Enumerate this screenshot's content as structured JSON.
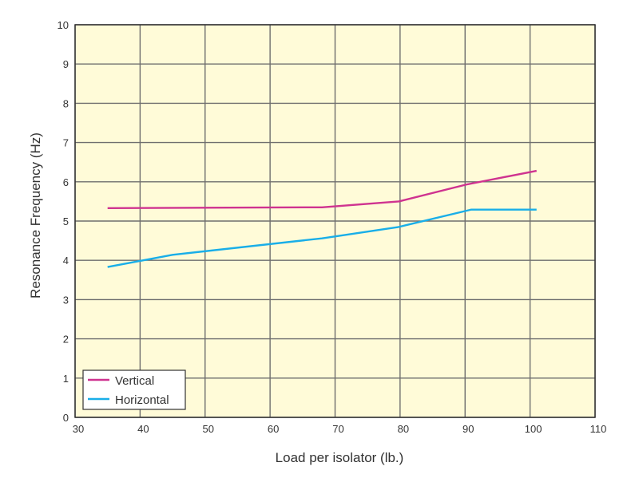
{
  "chart_data": {
    "type": "line",
    "title": "",
    "xlabel": "Load per isolator (lb.)",
    "ylabel": "Resonance Frequency (Hz)",
    "xlim": [
      30,
      110
    ],
    "ylim": [
      0,
      10
    ],
    "xticks": [
      30,
      40,
      50,
      60,
      70,
      80,
      90,
      100,
      110
    ],
    "yticks": [
      0,
      1,
      2,
      3,
      4,
      5,
      6,
      7,
      8,
      9,
      10
    ],
    "grid": true,
    "legend_position": "bottom-left",
    "background": "#fffbd8",
    "series": [
      {
        "name": "Vertical",
        "color": "#cf3390",
        "x": [
          35,
          68,
          79.8,
          90.2,
          101
        ],
        "y": [
          5.33,
          5.35,
          5.5,
          5.93,
          6.28
        ]
      },
      {
        "name": "Horizontal",
        "color": "#19aee8",
        "x": [
          35,
          45,
          68,
          79.8,
          90.9,
          101
        ],
        "y": [
          3.83,
          4.14,
          4.56,
          4.85,
          5.29,
          5.29
        ]
      }
    ]
  }
}
